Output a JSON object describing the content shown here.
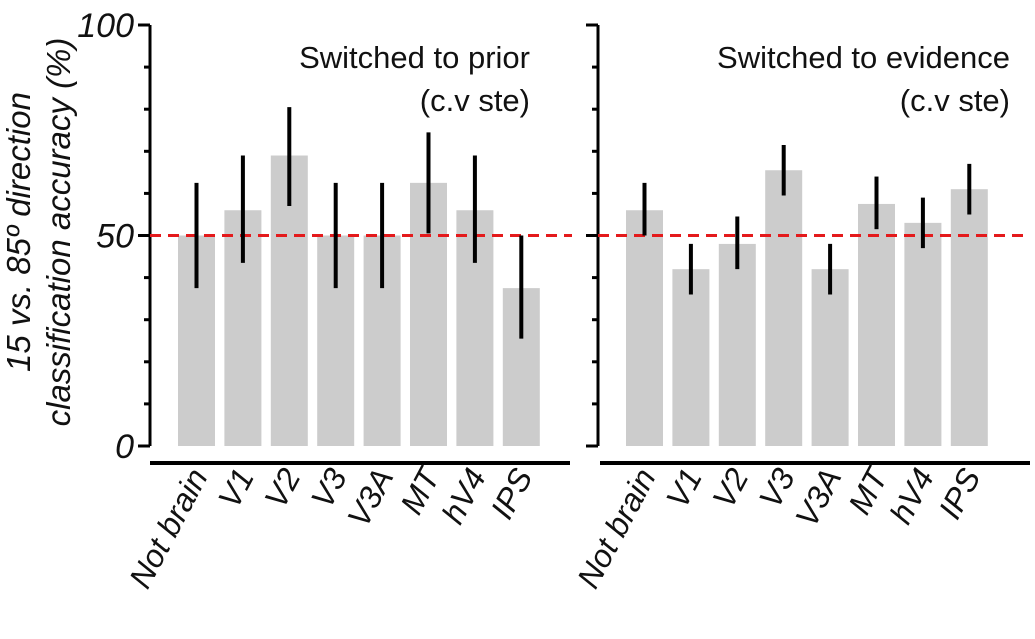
{
  "figure": {
    "ylabel_line1": "15 vs. 85º direction",
    "ylabel_line2": "classification  accuracy (%)"
  },
  "chart_data": [
    {
      "type": "bar",
      "annotation": [
        "Switched to prior",
        "(c.v ste)"
      ],
      "categories": [
        "Not brain",
        "V1",
        "V2",
        "V3",
        "V3A",
        "MT",
        "hV4",
        "IPS"
      ],
      "values": [
        50,
        56,
        69,
        50,
        50,
        62.5,
        56,
        37.5
      ],
      "error_low": [
        37.5,
        43.5,
        57,
        37.5,
        37.5,
        50.5,
        43.5,
        25.5
      ],
      "error_high": [
        62.5,
        69,
        80.5,
        62.5,
        62.5,
        74.5,
        69,
        50
      ],
      "reference_line": 50,
      "ylim": [
        0,
        100
      ],
      "yticks": [
        0,
        50,
        100
      ],
      "colors": {
        "bar": "#cccccc",
        "error": "#000000",
        "reference": "#e41a1c",
        "axis": "#000000"
      }
    },
    {
      "type": "bar",
      "annotation": [
        "Switched to evidence",
        "(c.v ste)"
      ],
      "categories": [
        "Not brain",
        "V1",
        "V2",
        "V3",
        "V3A",
        "MT",
        "hV4",
        "IPS"
      ],
      "values": [
        56,
        42,
        48,
        65.5,
        42,
        57.5,
        53,
        61
      ],
      "error_low": [
        50,
        36,
        42,
        59.5,
        36,
        51.5,
        47,
        55
      ],
      "error_high": [
        62.5,
        48,
        54.5,
        71.5,
        48,
        64,
        59,
        67
      ],
      "reference_line": 50,
      "ylim": [
        0,
        100
      ],
      "yticks": [
        0,
        50,
        100
      ],
      "colors": {
        "bar": "#cccccc",
        "error": "#000000",
        "reference": "#e41a1c",
        "axis": "#000000"
      }
    }
  ]
}
